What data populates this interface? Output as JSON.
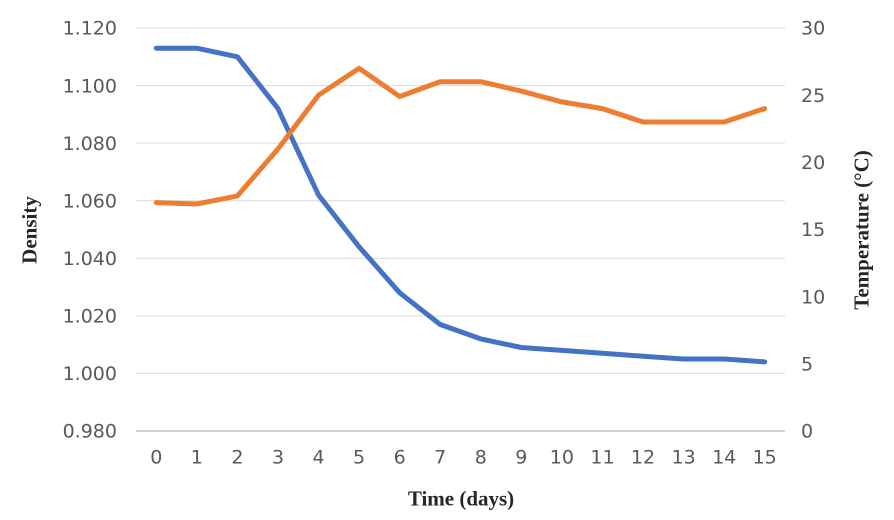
{
  "chart_data": {
    "type": "line",
    "title": "",
    "xlabel": "Time (days)",
    "x": [
      "0",
      "1",
      "2",
      "3",
      "4",
      "5",
      "6",
      "7",
      "8",
      "9",
      "10",
      "11",
      "12",
      "13",
      "14",
      "15"
    ],
    "series": [
      {
        "name": "Density",
        "axis": "left",
        "color": "#4472C4",
        "values": [
          1.113,
          1.113,
          1.11,
          1.092,
          1.062,
          1.044,
          1.028,
          1.017,
          1.012,
          1.009,
          1.008,
          1.007,
          1.006,
          1.005,
          1.005,
          1.004
        ]
      },
      {
        "name": "Temperature",
        "axis": "right",
        "color": "#ED7D31",
        "values": [
          17,
          16.9,
          17.5,
          21,
          25,
          27,
          24.9,
          26,
          26,
          25.3,
          24.5,
          24,
          23,
          23,
          23,
          24
        ]
      }
    ],
    "left_axis": {
      "label": "Density",
      "min": 0.98,
      "max": 1.12,
      "tick_values": [
        0.98,
        1.0,
        1.02,
        1.04,
        1.06,
        1.08,
        1.1,
        1.12
      ],
      "ticks": [
        "0.980",
        "1.000",
        "1.020",
        "1.040",
        "1.060",
        "1.080",
        "1.100",
        "1.120"
      ]
    },
    "right_axis": {
      "label": "Temperature (°C)",
      "min": 0,
      "max": 30,
      "tick_values": [
        0,
        5,
        10,
        15,
        20,
        25,
        30
      ],
      "ticks": [
        "0",
        "5",
        "10",
        "15",
        "20",
        "25",
        "30"
      ]
    },
    "grid": true,
    "legend": false,
    "colors": {
      "gridline": "#D9D9D9",
      "axis_line": "#BFBFBF",
      "tick_text": "#595959",
      "title_text": "#262626",
      "background": "#FFFFFF"
    }
  }
}
